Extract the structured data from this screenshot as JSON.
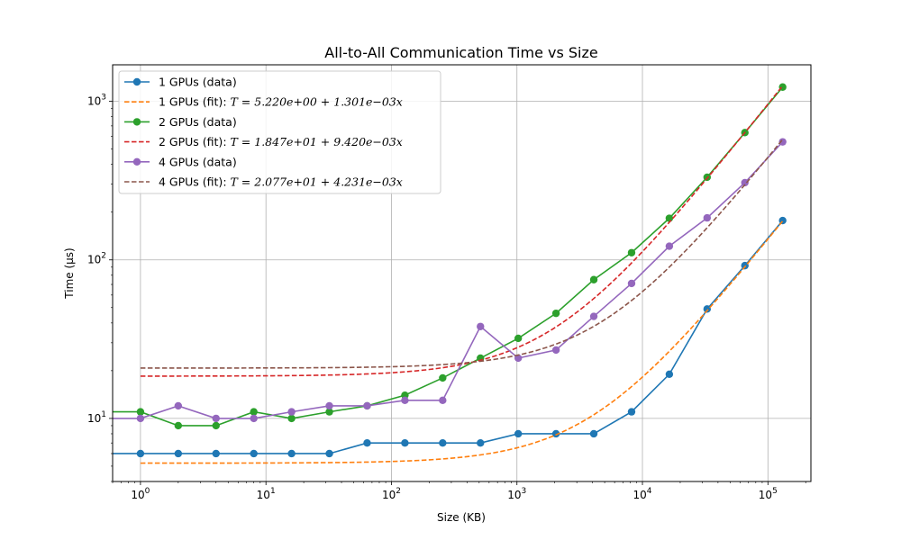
{
  "chart_data": {
    "type": "line",
    "title": "All-to-All Communication Time vs Size",
    "xlabel": "Size (KB)",
    "ylabel": "Time (µs)",
    "xscale": "log",
    "yscale": "log",
    "xlim": [
      0.6,
      220000
    ],
    "ylim": [
      4.0,
      1700
    ],
    "grid": true,
    "legend_position": "top-left",
    "x_ticks": [
      {
        "value": 1,
        "base": "10",
        "exp": "0"
      },
      {
        "value": 10,
        "base": "10",
        "exp": "1"
      },
      {
        "value": 100,
        "base": "10",
        "exp": "2"
      },
      {
        "value": 1000,
        "base": "10",
        "exp": "3"
      },
      {
        "value": 10000,
        "base": "10",
        "exp": "4"
      },
      {
        "value": 100000,
        "base": "10",
        "exp": "5"
      }
    ],
    "y_ticks": [
      {
        "value": 10,
        "base": "10",
        "exp": "1"
      },
      {
        "value": 100,
        "base": "10",
        "exp": "2"
      },
      {
        "value": 1000,
        "base": "10",
        "exp": "3"
      }
    ],
    "x": [
      1,
      2,
      4,
      8,
      16,
      32,
      64,
      128,
      256,
      512,
      1024,
      2048,
      4096,
      8192,
      16384,
      32768,
      65536,
      131072
    ],
    "series": [
      {
        "name": "1 GPUs (data)",
        "kind": "data",
        "color": "#1f77b4",
        "values": [
          6,
          6,
          6,
          6,
          6,
          6,
          7,
          7,
          7,
          7,
          8,
          8,
          8,
          11,
          19,
          49,
          92,
          177
        ]
      },
      {
        "name": "1 GPUs (fit): ",
        "equation": "T = 5.220e+00 + 1.301e−03x",
        "kind": "fit",
        "color": "#ff7f0e",
        "intercept": 5.22,
        "slope": 0.001301
      },
      {
        "name": "2 GPUs (data)",
        "kind": "data",
        "color": "#2ca02c",
        "values": [
          11,
          9,
          9,
          11,
          10,
          11,
          12,
          14,
          18,
          24,
          32,
          46,
          75,
          111,
          183,
          332,
          635,
          1230
        ]
      },
      {
        "name": "2 GPUs (fit): ",
        "equation": "T = 1.847e+01 + 9.420e−03x",
        "kind": "fit",
        "color": "#d62728",
        "intercept": 18.47,
        "slope": 0.00942
      },
      {
        "name": "4 GPUs (data)",
        "kind": "data",
        "color": "#9467bd",
        "values": [
          10,
          12,
          10,
          10,
          11,
          12,
          12,
          13,
          13,
          38,
          24,
          27,
          44,
          71,
          122,
          184,
          307,
          555
        ]
      },
      {
        "name": "4 GPUs (fit): ",
        "equation": "T = 2.077e+01 + 4.231e−03x",
        "kind": "fit",
        "color": "#8c564b",
        "intercept": 20.77,
        "slope": 0.004231
      }
    ]
  }
}
